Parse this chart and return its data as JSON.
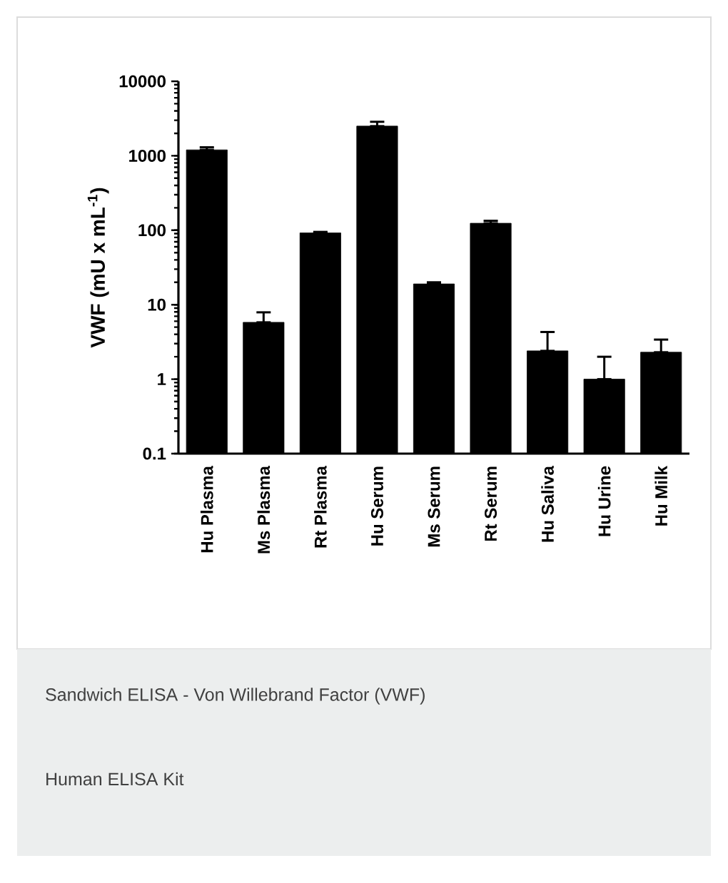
{
  "chart_data": {
    "type": "bar",
    "ylabel": "VWF (mU x mL$^{-1}$)",
    "categories": [
      "Hu Plasma",
      "Ms Plasma",
      "Rt Plasma",
      "Hu Serum",
      "Ms Serum",
      "Rt Serum",
      "Hu Saliva",
      "Hu Urine",
      "Hu Milk"
    ],
    "values": [
      1200,
      5.8,
      92,
      2500,
      19,
      124,
      2.4,
      1.0,
      2.3
    ],
    "errors": [
      [
        1200,
        1300
      ],
      [
        5.8,
        7.9
      ],
      [
        92,
        95
      ],
      [
        2500,
        2860
      ],
      [
        19,
        20
      ],
      [
        124,
        134
      ],
      [
        2.4,
        4.3
      ],
      [
        1.0,
        2.0
      ],
      [
        2.3,
        3.4
      ]
    ],
    "color": "#000000",
    "log": true,
    "ylim": [
      0.1,
      10000
    ],
    "yticks": [
      0.1,
      1,
      10,
      100,
      1000,
      10000
    ],
    "annotations": [
      "Sandwich ELISA - Von Willebrand Factor (VWF)",
      "Human ELISA Kit"
    ]
  }
}
